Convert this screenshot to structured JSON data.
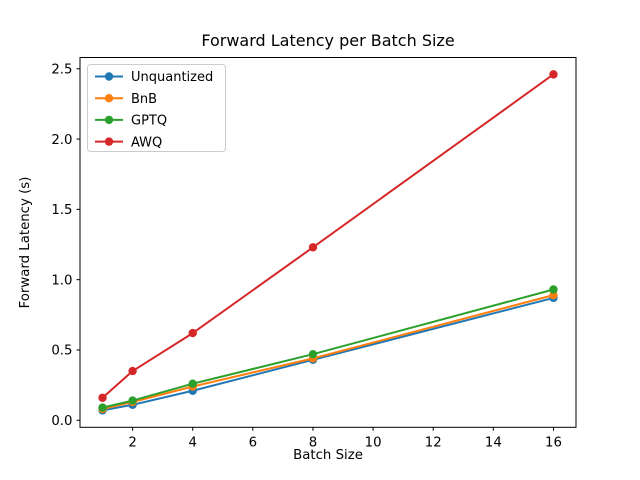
{
  "chart_data": {
    "type": "line",
    "title": "Forward Latency per Batch Size",
    "xlabel": "Batch Size",
    "ylabel": "Forward Latency (s)",
    "x": [
      1,
      2,
      4,
      8,
      16
    ],
    "series": [
      {
        "name": "Unquantized",
        "color": "#1f77b4",
        "values": [
          0.07,
          0.11,
          0.21,
          0.43,
          0.87
        ]
      },
      {
        "name": "BnB",
        "color": "#ff7f0e",
        "values": [
          0.08,
          0.13,
          0.24,
          0.44,
          0.89
        ]
      },
      {
        "name": "GPTQ",
        "color": "#2ca02c",
        "values": [
          0.09,
          0.14,
          0.26,
          0.47,
          0.93
        ]
      },
      {
        "name": "AWQ",
        "color": "#d62728",
        "values": [
          0.16,
          0.35,
          0.62,
          1.23,
          2.46
        ]
      }
    ],
    "xticks": [
      "2",
      "4",
      "6",
      "8",
      "10",
      "12",
      "14",
      "16"
    ],
    "yticks": [
      "0.0",
      "0.5",
      "1.0",
      "1.5",
      "2.0",
      "2.5"
    ],
    "xlim": [
      0.25,
      16.75
    ],
    "ylim": [
      -0.05,
      2.58
    ],
    "grid": false,
    "legend_position": "upper left",
    "marker": "circle",
    "line_style": "solid",
    "spine_color": "#000000",
    "legend_border_color": "#cccccc",
    "background_color": "#ffffff"
  }
}
